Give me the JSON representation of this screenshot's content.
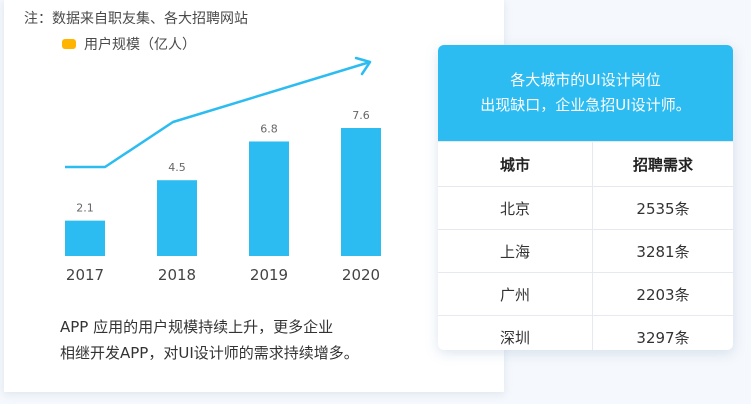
{
  "note": "注：数据来自职友集、各大招聘网站",
  "legend": {
    "label": "用户规模（亿人）",
    "color": "#ffb400"
  },
  "summary": {
    "line1": "APP 应用的用户规模持续上升，更多企业",
    "line2": "相继开发APP，对UI设计师的需求持续增多。"
  },
  "colors": {
    "bar": "#2cbcf1",
    "trend": "#2cbcf1",
    "header": "#2cbcf1"
  },
  "chart_data": {
    "type": "bar",
    "categories": [
      "2017",
      "2018",
      "2019",
      "2020"
    ],
    "series": [
      {
        "name": "用户规模（亿人）",
        "values": [
          2.1,
          4.5,
          6.8,
          7.6
        ]
      }
    ],
    "value_labels": [
      "2.1",
      "4.5",
      "6.8",
      "7.6"
    ],
    "ylim": [
      0,
      8
    ],
    "grid": false,
    "legend_position": "top-left",
    "trend_arrow": true
  },
  "card": {
    "title_line1": "各大城市的UI设计岗位",
    "title_line2": "出现缺口，企业急招UI设计师。",
    "columns": [
      "城市",
      "招聘需求"
    ],
    "rows": [
      [
        "北京",
        "2535条"
      ],
      [
        "上海",
        "3281条"
      ],
      [
        "广州",
        "2203条"
      ],
      [
        "深圳",
        "3297条"
      ]
    ]
  }
}
